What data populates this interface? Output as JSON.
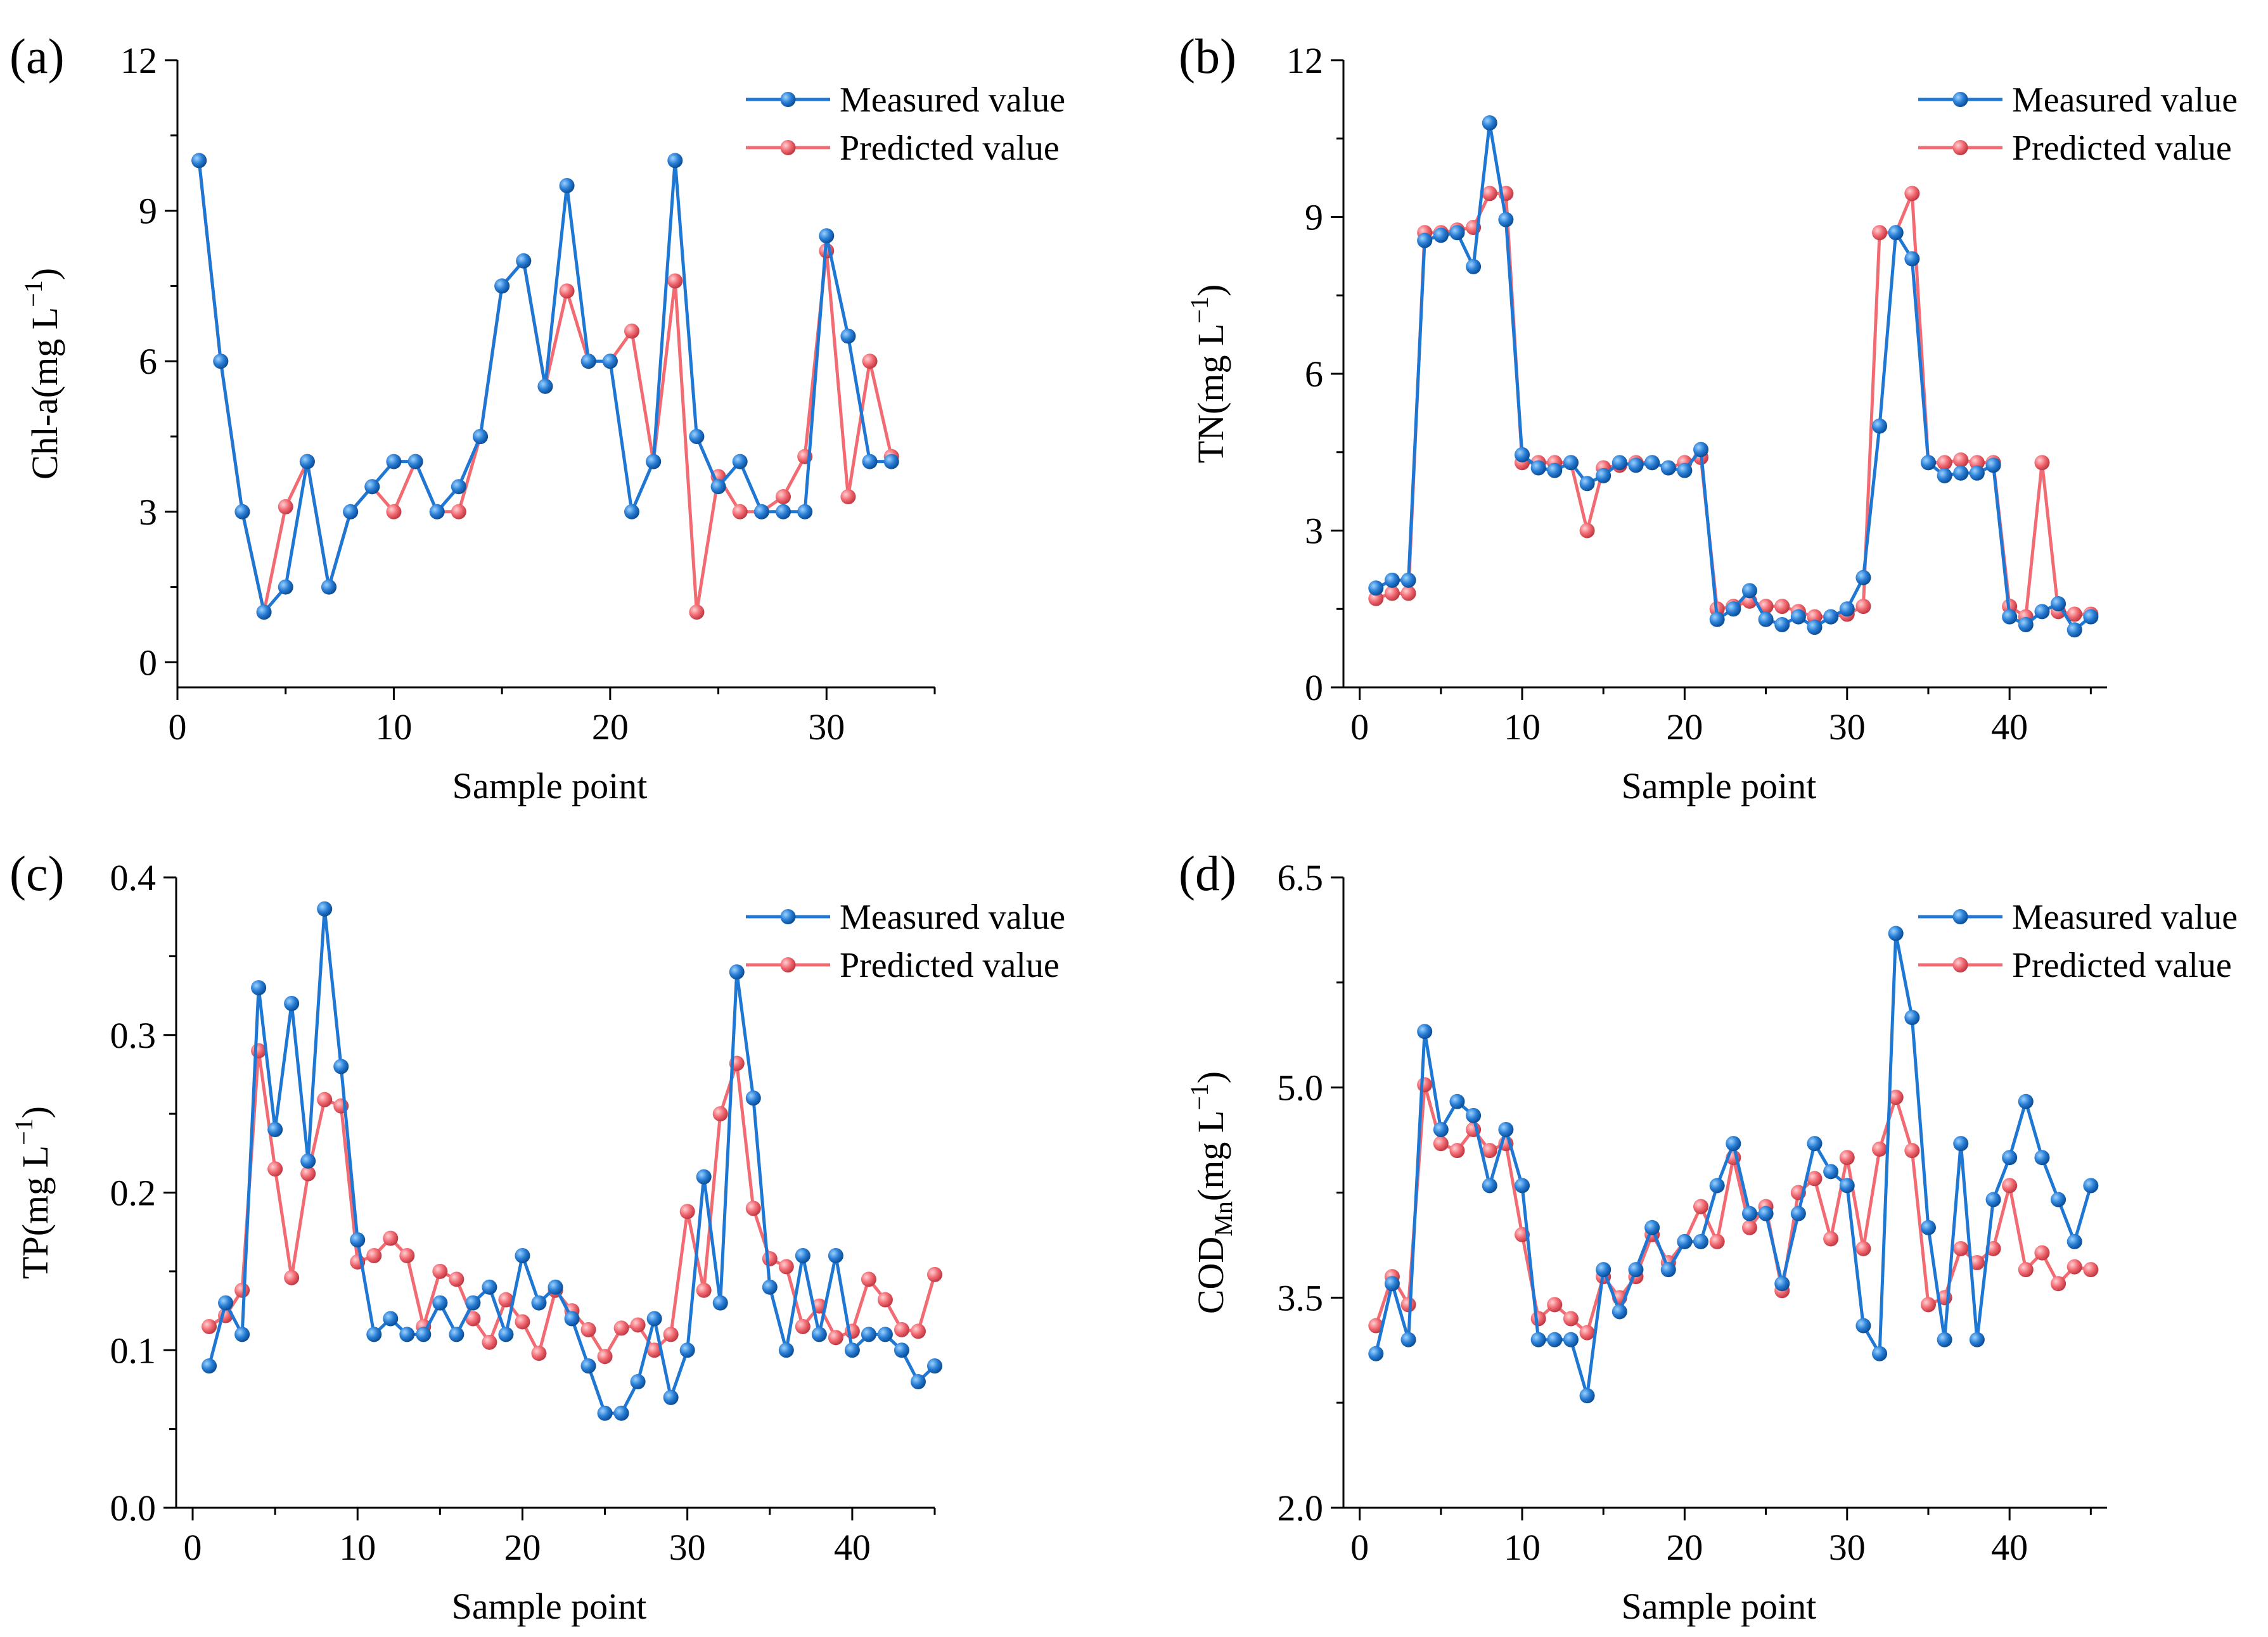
{
  "colors": {
    "measured": "#1f77d4",
    "predicted": "#f26b73",
    "axis": "#000000"
  },
  "chart_data": [
    {
      "panel": "(a)",
      "type": "line",
      "xlabel": "Sample point",
      "ylabel": {
        "main": "Chl-a(mg L",
        "sup": "−1",
        "close": ")"
      },
      "xlim": [
        0,
        35
      ],
      "ylim": [
        -0.5,
        12
      ],
      "xticks": [
        0,
        10,
        20,
        30
      ],
      "yticks": [
        0,
        3,
        6,
        9,
        12
      ],
      "ytick_labels": [
        "0",
        "3",
        "6",
        "9",
        "12"
      ],
      "legend": [
        "Measured value",
        "Predicted value"
      ],
      "series": [
        {
          "name": "Measured value",
          "x": [
            1,
            2,
            3,
            4,
            5,
            6,
            7,
            8,
            9,
            10,
            11,
            12,
            13,
            14,
            15,
            16,
            17,
            18,
            19,
            20,
            21,
            22,
            23,
            24,
            25,
            26,
            27,
            28,
            29,
            30,
            31,
            32,
            33
          ],
          "values": [
            10,
            6,
            3,
            1,
            1.5,
            4,
            1.5,
            3,
            3.5,
            4,
            4,
            3,
            3.5,
            4.5,
            7.5,
            8,
            5.5,
            9.5,
            6,
            6,
            3,
            4,
            10,
            4.5,
            3.5,
            4,
            3,
            3,
            3,
            8.5,
            6.5,
            4,
            4
          ]
        },
        {
          "name": "Predicted value",
          "x": [
            1,
            2,
            3,
            4,
            5,
            6,
            7,
            8,
            9,
            10,
            11,
            12,
            13,
            14,
            15,
            16,
            17,
            18,
            19,
            20,
            21,
            22,
            23,
            24,
            25,
            26,
            27,
            28,
            29,
            30,
            31,
            32,
            33
          ],
          "values": [
            10,
            6,
            3,
            1,
            3.1,
            4,
            1.5,
            3,
            3.5,
            3,
            4,
            3,
            3,
            4.5,
            7.5,
            8,
            5.5,
            7.4,
            6,
            6,
            6.6,
            4,
            7.6,
            1,
            3.7,
            3,
            3,
            3.3,
            4.1,
            8.2,
            3.3,
            6,
            4.1
          ]
        }
      ]
    },
    {
      "panel": "(b)",
      "type": "line",
      "xlabel": "Sample point",
      "ylabel": {
        "main": "TN(mg L",
        "sup": "−1",
        "close": ")"
      },
      "xlim": [
        -1,
        46
      ],
      "ylim": [
        0,
        12
      ],
      "xticks": [
        0,
        10,
        20,
        30,
        40
      ],
      "yticks": [
        0,
        3,
        6,
        9,
        12
      ],
      "ytick_labels": [
        "0",
        "3",
        "6",
        "9",
        "12"
      ],
      "legend": [
        "Measured value",
        "Predicted value"
      ],
      "series": [
        {
          "name": "Measured value",
          "x": [
            1,
            2,
            3,
            4,
            5,
            6,
            7,
            8,
            9,
            10,
            11,
            12,
            13,
            14,
            15,
            16,
            17,
            18,
            19,
            20,
            21,
            22,
            23,
            24,
            25,
            26,
            27,
            28,
            29,
            30,
            31,
            32,
            33,
            34,
            35,
            36,
            37,
            38,
            39,
            40,
            41,
            42,
            43,
            44,
            45
          ],
          "values": [
            1.9,
            2.05,
            2.05,
            8.55,
            8.65,
            8.7,
            8.05,
            10.8,
            8.95,
            4.45,
            4.2,
            4.15,
            4.3,
            3.9,
            4.05,
            4.3,
            4.25,
            4.3,
            4.2,
            4.15,
            4.55,
            1.3,
            1.5,
            1.85,
            1.3,
            1.2,
            1.35,
            1.15,
            1.35,
            1.5,
            2.1,
            5,
            8.7,
            8.2,
            4.3,
            4.05,
            4.1,
            4.1,
            4.25,
            1.35,
            1.2,
            1.45,
            1.6,
            1.1,
            1.35
          ]
        },
        {
          "name": "Predicted value",
          "x": [
            1,
            2,
            3,
            4,
            5,
            6,
            7,
            8,
            9,
            10,
            11,
            12,
            13,
            14,
            15,
            16,
            17,
            18,
            19,
            20,
            21,
            22,
            23,
            24,
            25,
            26,
            27,
            28,
            29,
            30,
            31,
            32,
            33,
            34,
            35,
            36,
            37,
            38,
            39,
            40,
            41,
            42,
            43,
            44,
            45
          ],
          "values": [
            1.7,
            1.8,
            1.8,
            8.7,
            8.7,
            8.75,
            8.8,
            9.45,
            9.45,
            4.3,
            4.3,
            4.3,
            4.3,
            3,
            4.2,
            4.25,
            4.3,
            4.3,
            4.2,
            4.3,
            4.4,
            1.5,
            1.55,
            1.65,
            1.55,
            1.55,
            1.45,
            1.35,
            1.35,
            1.4,
            1.55,
            8.7,
            8.7,
            9.45,
            4.3,
            4.3,
            4.35,
            4.3,
            4.3,
            1.55,
            1.35,
            4.3,
            1.45,
            1.4,
            1.4
          ]
        }
      ]
    },
    {
      "panel": "(c)",
      "type": "line",
      "xlabel": "Sample point",
      "ylabel": {
        "main": "TP(mg L",
        "sup": "−1",
        "close": ")"
      },
      "xlim": [
        -1,
        45
      ],
      "ylim": [
        0,
        0.4
      ],
      "xticks": [
        0,
        10,
        20,
        30,
        40
      ],
      "yticks": [
        0,
        0.1,
        0.2,
        0.3,
        0.4
      ],
      "ytick_labels": [
        "0.0",
        "0.1",
        "0.2",
        "0.3",
        "0.4"
      ],
      "legend": [
        "Measured value",
        "Predicted value"
      ],
      "series": [
        {
          "name": "Measured value",
          "x": [
            1,
            2,
            3,
            4,
            5,
            6,
            7,
            8,
            9,
            10,
            11,
            12,
            13,
            14,
            15,
            16,
            17,
            18,
            19,
            20,
            21,
            22,
            23,
            24,
            25,
            26,
            27,
            28,
            29,
            30,
            31,
            32,
            33,
            34,
            35,
            36,
            37,
            38,
            39,
            40,
            41,
            42,
            43,
            44,
            45
          ],
          "values": [
            0.09,
            0.13,
            0.11,
            0.33,
            0.24,
            0.32,
            0.22,
            0.38,
            0.28,
            0.17,
            0.11,
            0.12,
            0.11,
            0.11,
            0.13,
            0.11,
            0.13,
            0.14,
            0.11,
            0.16,
            0.13,
            0.14,
            0.12,
            0.09,
            0.06,
            0.06,
            0.08,
            0.12,
            0.07,
            0.1,
            0.21,
            0.13,
            0.34,
            0.26,
            0.14,
            0.1,
            0.16,
            0.11,
            0.16,
            0.1,
            0.11,
            0.11,
            0.1,
            0.08,
            0.09
          ]
        },
        {
          "name": "Predicted value",
          "x": [
            1,
            2,
            3,
            4,
            5,
            6,
            7,
            8,
            9,
            10,
            11,
            12,
            13,
            14,
            15,
            16,
            17,
            18,
            19,
            20,
            21,
            22,
            23,
            24,
            25,
            26,
            27,
            28,
            29,
            30,
            31,
            32,
            33,
            34,
            35,
            36,
            37,
            38,
            39,
            40,
            41,
            42,
            43,
            44,
            45
          ],
          "values": [
            0.115,
            0.122,
            0.138,
            0.29,
            0.215,
            0.146,
            0.212,
            0.259,
            0.255,
            0.156,
            0.16,
            0.171,
            0.16,
            0.115,
            0.15,
            0.145,
            0.12,
            0.105,
            0.132,
            0.118,
            0.098,
            0.138,
            0.125,
            0.113,
            0.096,
            0.114,
            0.116,
            0.1,
            0.11,
            0.188,
            0.138,
            0.25,
            0.282,
            0.19,
            0.158,
            0.153,
            0.115,
            0.128,
            0.108,
            0.112,
            0.145,
            0.132,
            0.113,
            0.112,
            0.148
          ]
        }
      ]
    },
    {
      "panel": "(d)",
      "type": "line",
      "xlabel": "Sample point",
      "ylabel": {
        "main": "COD",
        "sub": "Mn",
        "mid": "(mg L",
        "sup": "−1",
        "close": ")"
      },
      "xlim": [
        -1,
        46
      ],
      "ylim": [
        2.0,
        6.5
      ],
      "xticks": [
        0,
        10,
        20,
        30,
        40
      ],
      "yticks": [
        2.0,
        3.5,
        5.0,
        6.5
      ],
      "ytick_labels": [
        "2.0",
        "3.5",
        "5.0",
        "6.5"
      ],
      "legend": [
        "Measured value",
        "Predicted value"
      ],
      "series": [
        {
          "name": "Measured value",
          "x": [
            1,
            2,
            3,
            4,
            5,
            6,
            7,
            8,
            9,
            10,
            11,
            12,
            13,
            14,
            15,
            16,
            17,
            18,
            19,
            20,
            21,
            22,
            23,
            24,
            25,
            26,
            27,
            28,
            29,
            30,
            31,
            32,
            33,
            34,
            35,
            36,
            37,
            38,
            39,
            40,
            41,
            42,
            43,
            44,
            45
          ],
          "values": [
            3.1,
            3.6,
            3.2,
            5.4,
            4.7,
            4.9,
            4.8,
            4.3,
            4.7,
            4.3,
            3.2,
            3.2,
            3.2,
            2.8,
            3.7,
            3.4,
            3.7,
            4.0,
            3.7,
            3.9,
            3.9,
            4.3,
            4.6,
            4.1,
            4.1,
            3.6,
            4.1,
            4.6,
            4.4,
            4.3,
            3.3,
            3.1,
            6.1,
            5.5,
            4.0,
            3.2,
            4.6,
            3.2,
            4.2,
            4.5,
            4.9,
            4.5,
            4.2,
            3.9,
            4.3
          ]
        },
        {
          "name": "Predicted value",
          "x": [
            1,
            2,
            3,
            4,
            5,
            6,
            7,
            8,
            9,
            10,
            11,
            12,
            13,
            14,
            15,
            16,
            17,
            18,
            19,
            20,
            21,
            22,
            23,
            24,
            25,
            26,
            27,
            28,
            29,
            30,
            31,
            32,
            33,
            34,
            35,
            36,
            37,
            38,
            39,
            40,
            41,
            42,
            43,
            44,
            45
          ],
          "values": [
            3.3,
            3.65,
            3.45,
            5.02,
            4.6,
            4.55,
            4.7,
            4.55,
            4.6,
            3.95,
            3.35,
            3.45,
            3.35,
            3.25,
            3.65,
            3.5,
            3.65,
            3.95,
            3.75,
            3.9,
            4.15,
            3.9,
            4.5,
            4.0,
            4.15,
            3.55,
            4.25,
            4.35,
            3.92,
            4.5,
            3.85,
            4.56,
            4.93,
            4.55,
            3.45,
            3.5,
            3.85,
            3.75,
            3.85,
            4.3,
            3.7,
            3.82,
            3.6,
            3.72,
            3.7
          ]
        }
      ]
    }
  ]
}
